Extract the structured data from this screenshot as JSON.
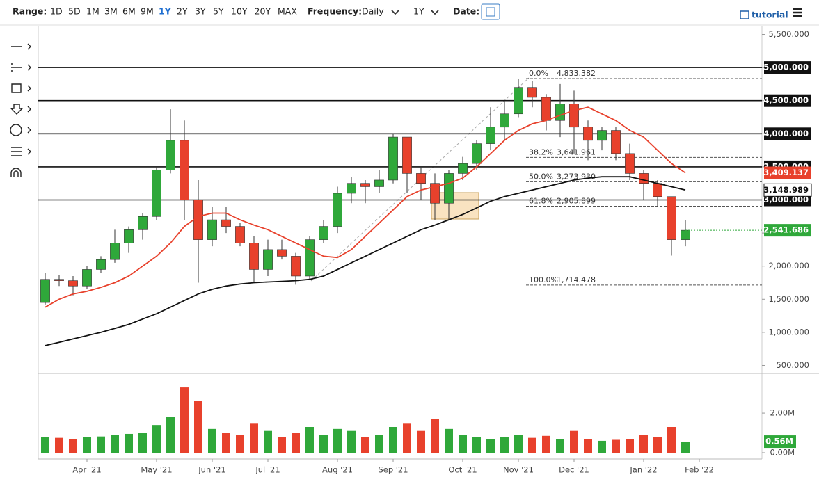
{
  "toolbar": {
    "range_label": "Range:",
    "ranges": [
      "1D",
      "5D",
      "1M",
      "3M",
      "6M",
      "9M",
      "1Y",
      "2Y",
      "3Y",
      "5Y",
      "10Y",
      "20Y",
      "MAX"
    ],
    "active_range": "1Y",
    "frequency_label": "Frequency:",
    "frequency": "Daily",
    "period": "1Y",
    "date_label": "Date:",
    "tutorial": "tutorial"
  },
  "chart_data": {
    "type": "candlestick",
    "categories": [
      null,
      null,
      null,
      "Apr '21",
      null,
      null,
      null,
      null,
      "May '21",
      null,
      null,
      null,
      "Jun '21",
      null,
      null,
      null,
      "Jul '21",
      null,
      null,
      null,
      null,
      "Aug '21",
      null,
      null,
      null,
      "Sep '21",
      null,
      null,
      null,
      null,
      "Oct '21",
      null,
      null,
      null,
      "Nov '21",
      null,
      null,
      null,
      "Dec '21",
      null,
      null,
      null,
      null,
      "Jan '22",
      null,
      null,
      null,
      "Feb '22",
      null,
      null,
      null,
      null
    ],
    "open": [
      1450,
      1800,
      1780,
      1700,
      1950,
      2100,
      2350,
      2550,
      2750,
      3450,
      3900,
      3000,
      2400,
      2700,
      2600,
      2350,
      1950,
      2250,
      2150,
      1850,
      2400,
      2600,
      3100,
      3250,
      3200,
      3300,
      3950,
      3400,
      3250,
      2950,
      3400,
      3550,
      3850,
      4100,
      4300,
      4700,
      4550,
      4200,
      4450,
      4100,
      3900,
      4050,
      3700,
      3400,
      3250,
      3050,
      2400,
      null,
      null,
      null,
      null,
      null
    ],
    "high": [
      1900,
      1870,
      1850,
      2000,
      2150,
      2550,
      2600,
      2800,
      3500,
      4370,
      4200,
      3300,
      2900,
      2900,
      2650,
      2450,
      2400,
      2400,
      2200,
      2450,
      2700,
      3200,
      3350,
      3300,
      3450,
      4000,
      3950,
      3500,
      3400,
      3450,
      3650,
      3900,
      4400,
      4500,
      4833,
      4800,
      4600,
      4750,
      4650,
      4200,
      4100,
      4100,
      3850,
      3450,
      3300,
      3050,
      2700,
      null,
      null,
      null,
      null,
      null
    ],
    "low": [
      1420,
      1700,
      1560,
      1650,
      1900,
      2050,
      2200,
      2400,
      2700,
      3400,
      2700,
      1750,
      2300,
      2500,
      2300,
      1750,
      1850,
      2100,
      1720,
      1800,
      2350,
      2500,
      2950,
      2950,
      3100,
      3250,
      3100,
      3000,
      2700,
      2700,
      3300,
      3450,
      3750,
      3900,
      4250,
      4400,
      4050,
      3950,
      3700,
      3600,
      3750,
      3600,
      3300,
      3000,
      2900,
      2160,
      2300,
      null,
      null,
      null,
      null,
      null
    ],
    "close": [
      1800,
      1780,
      1700,
      1950,
      2100,
      2350,
      2550,
      2750,
      3450,
      3900,
      3000,
      2400,
      2700,
      2600,
      2350,
      1950,
      2250,
      2150,
      1850,
      2400,
      2600,
      3100,
      3250,
      3200,
      3300,
      3950,
      3400,
      3250,
      2950,
      3400,
      3550,
      3850,
      4100,
      4300,
      4700,
      4550,
      4200,
      4450,
      4100,
      3900,
      4050,
      3700,
      3400,
      3250,
      3050,
      2400,
      2541.686,
      null,
      null,
      null,
      null,
      null
    ],
    "up_color": "#2fa83a",
    "down_color": "#e8412c",
    "ylim": [
      400,
      5600
    ],
    "yticks": [
      {
        "value": 500,
        "label": "500.000"
      },
      {
        "value": 1000,
        "label": "1,000.000"
      },
      {
        "value": 1500,
        "label": "1,500.000"
      },
      {
        "value": 2000,
        "label": "2,000.000"
      },
      {
        "value": 2500,
        "label": "2,500.000"
      },
      {
        "value": 3000,
        "label": "3,000.000"
      },
      {
        "value": 3500,
        "label": "3,500.000"
      },
      {
        "value": 4000,
        "label": "4,000.000"
      },
      {
        "value": 4500,
        "label": "4,500.000"
      },
      {
        "value": 5000,
        "label": "5,000.000"
      },
      {
        "value": 5500,
        "label": "5,500.000"
      }
    ],
    "last_price_label": {
      "value": 2541.686,
      "label": "2,541.686"
    },
    "levels": [
      {
        "value": 5000,
        "label": "5,000.000"
      },
      {
        "value": 4500,
        "label": "4,500.000"
      },
      {
        "value": 4000,
        "label": "4,000.000"
      },
      {
        "value": 3500,
        "label": "3,500.000"
      },
      {
        "value": 3000,
        "label": "3,000.000"
      }
    ],
    "fibonacci": [
      {
        "ratio": "0.0%",
        "price": {
          "value": 4833.382,
          "label": "4,833.382"
        }
      },
      {
        "ratio": "38.2%",
        "price": {
          "value": 3641.961,
          "label": "3,641.961"
        }
      },
      {
        "ratio": "50.0%",
        "price": {
          "value": 3273.93,
          "label": "3,273.930"
        }
      },
      {
        "ratio": "61.8%",
        "price": {
          "value": 2905.899,
          "label": "2,905.899"
        }
      },
      {
        "ratio": "100.0%",
        "price": {
          "value": 1714.478,
          "label": "1,714.478"
        }
      }
    ],
    "series": [
      {
        "color": "#e8412c",
        "values": [
          1380,
          1500,
          1580,
          1620,
          1680,
          1750,
          1850,
          2000,
          2150,
          2350,
          2600,
          2750,
          2800,
          2800,
          2700,
          2620,
          2550,
          2450,
          2350,
          2250,
          2150,
          2130,
          2250,
          2450,
          2650,
          2850,
          3050,
          3150,
          3200,
          3250,
          3330,
          3500,
          3700,
          3900,
          4050,
          4150,
          4200,
          4280,
          4350,
          4400,
          4300,
          4200,
          4050,
          3950,
          3750,
          3550,
          3409.137,
          null,
          null,
          null,
          null,
          null
        ],
        "last_label": {
          "value": 3409.137,
          "label": "3,409.137"
        }
      },
      {
        "color": "#111111",
        "values": [
          800,
          850,
          900,
          950,
          1000,
          1060,
          1120,
          1200,
          1280,
          1380,
          1480,
          1580,
          1650,
          1700,
          1730,
          1750,
          1760,
          1770,
          1780,
          1800,
          1850,
          1950,
          2050,
          2150,
          2250,
          2350,
          2450,
          2550,
          2620,
          2700,
          2780,
          2880,
          2980,
          3050,
          3100,
          3150,
          3200,
          3250,
          3300,
          3330,
          3350,
          3350,
          3350,
          3300,
          3250,
          3200,
          3148.989,
          null,
          null,
          null,
          null,
          null
        ],
        "last_label": {
          "value": 3148.989,
          "label": "3,148.989"
        }
      }
    ],
    "volume": {
      "values": [
        800000,
        750000,
        700000,
        780000,
        820000,
        900000,
        950000,
        1000000,
        1400000,
        1800000,
        3300000,
        2600000,
        1200000,
        1000000,
        900000,
        1500000,
        1100000,
        800000,
        1000000,
        1300000,
        900000,
        1200000,
        1100000,
        800000,
        900000,
        1300000,
        1500000,
        1100000,
        1700000,
        1200000,
        900000,
        800000,
        700000,
        800000,
        900000,
        750000,
        850000,
        700000,
        1100000,
        700000,
        600000,
        650000,
        700000,
        900000,
        800000,
        1300000,
        560000,
        null,
        null,
        null,
        null,
        null
      ],
      "ylim": [
        0,
        3900000
      ],
      "yticks": [
        {
          "value": 0,
          "label": "0.00M"
        },
        {
          "value": 2000000,
          "label": "2.00M"
        }
      ],
      "last_label": {
        "value": 560000,
        "label": "0.56M"
      }
    }
  }
}
